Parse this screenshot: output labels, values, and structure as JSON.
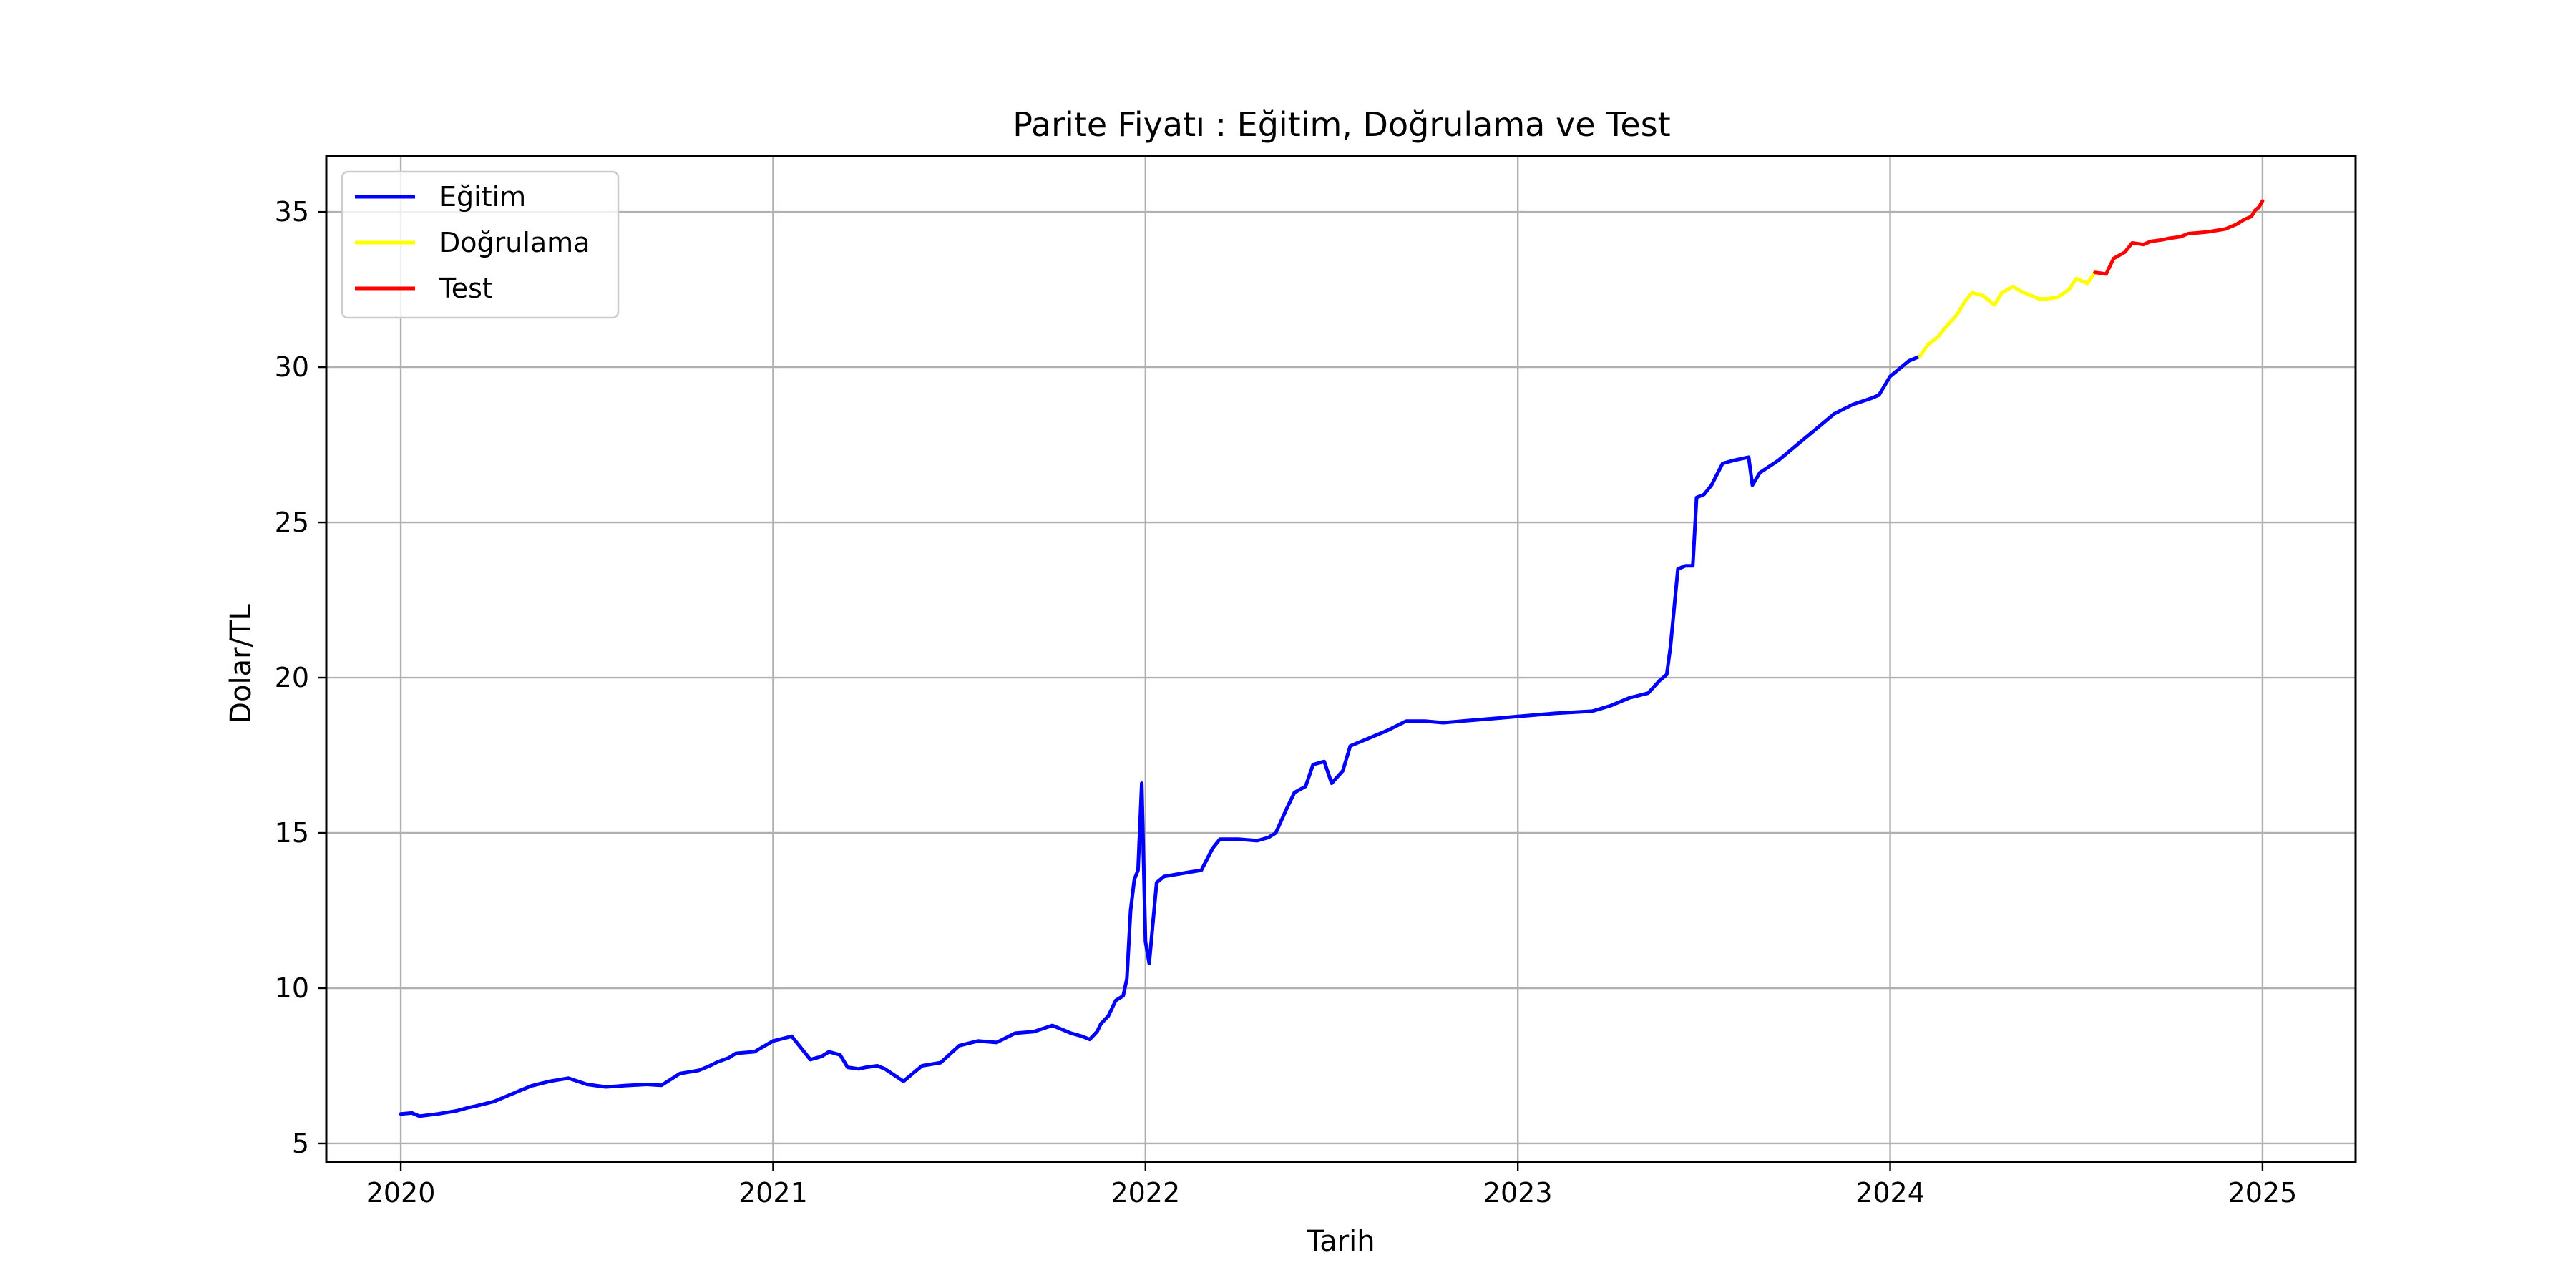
{
  "chart_data": {
    "type": "line",
    "title": "Parite Fiyatı : Eğitim, Doğrulama ve Test",
    "xlabel": "Tarih",
    "ylabel": "Dolar/TL",
    "xlim": [
      2019.8,
      2025.25
    ],
    "ylim": [
      4.4,
      36.8
    ],
    "x_ticks": [
      "2020",
      "2021",
      "2022",
      "2023",
      "2024",
      "2025"
    ],
    "y_ticks": [
      "5",
      "10",
      "15",
      "20",
      "25",
      "30",
      "35"
    ],
    "grid": true,
    "legend_position": "upper-left",
    "series": [
      {
        "name": "Eğitim",
        "color": "#0000ff",
        "x": [
          2020.0,
          2020.03,
          2020.05,
          2020.1,
          2020.15,
          2020.18,
          2020.2,
          2020.25,
          2020.3,
          2020.35,
          2020.4,
          2020.45,
          2020.5,
          2020.55,
          2020.58,
          2020.6,
          2020.63,
          2020.66,
          2020.7,
          2020.75,
          2020.8,
          2020.83,
          2020.85,
          2020.88,
          2020.9,
          2020.95,
          2021.0,
          2021.05,
          2021.1,
          2021.13,
          2021.15,
          2021.18,
          2021.2,
          2021.23,
          2021.25,
          2021.28,
          2021.3,
          2021.35,
          2021.4,
          2021.45,
          2021.5,
          2021.55,
          2021.6,
          2021.65,
          2021.7,
          2021.75,
          2021.78,
          2021.8,
          2021.83,
          2021.85,
          2021.87,
          2021.88,
          2021.9,
          2021.92,
          2021.94,
          2021.95,
          2021.96,
          2021.97,
          2021.98,
          2021.99,
          2022.0,
          2022.01,
          2022.03,
          2022.05,
          2022.1,
          2022.15,
          2022.18,
          2022.2,
          2022.25,
          2022.3,
          2022.33,
          2022.35,
          2022.38,
          2022.4,
          2022.43,
          2022.45,
          2022.48,
          2022.5,
          2022.53,
          2022.55,
          2022.58,
          2022.6,
          2022.65,
          2022.7,
          2022.75,
          2022.8,
          2022.85,
          2022.9,
          2022.95,
          2023.0,
          2023.1,
          2023.2,
          2023.25,
          2023.3,
          2023.35,
          2023.38,
          2023.4,
          2023.41,
          2023.43,
          2023.45,
          2023.47,
          2023.48,
          2023.5,
          2023.52,
          2023.55,
          2023.58,
          2023.6,
          2023.62,
          2023.63,
          2023.65,
          2023.7,
          2023.75,
          2023.8,
          2023.85,
          2023.9,
          2023.95,
          2023.97,
          2024.0,
          2024.05,
          2024.08
        ],
        "y": [
          5.95,
          5.98,
          5.88,
          5.95,
          6.05,
          6.15,
          6.2,
          6.35,
          6.6,
          6.85,
          7.0,
          7.1,
          6.9,
          6.82,
          6.84,
          6.86,
          6.88,
          6.9,
          6.87,
          7.25,
          7.35,
          7.5,
          7.62,
          7.75,
          7.9,
          7.95,
          8.3,
          8.45,
          7.7,
          7.8,
          7.95,
          7.85,
          7.45,
          7.4,
          7.45,
          7.5,
          7.4,
          7.0,
          7.5,
          7.6,
          8.15,
          8.3,
          8.25,
          8.55,
          8.6,
          8.8,
          8.65,
          8.55,
          8.45,
          8.35,
          8.6,
          8.85,
          9.1,
          9.6,
          9.75,
          10.3,
          12.5,
          13.5,
          13.8,
          16.6,
          11.5,
          10.8,
          13.4,
          13.6,
          13.7,
          13.8,
          14.5,
          14.8,
          14.8,
          14.75,
          14.85,
          15.0,
          15.8,
          16.3,
          16.5,
          17.2,
          17.3,
          16.6,
          17.0,
          17.8,
          17.95,
          18.05,
          18.3,
          18.6,
          18.6,
          18.55,
          18.6,
          18.65,
          18.7,
          18.75,
          18.85,
          18.92,
          19.1,
          19.35,
          19.5,
          19.9,
          20.1,
          21.0,
          23.5,
          23.6,
          23.6,
          25.8,
          25.9,
          26.2,
          26.9,
          27.0,
          27.05,
          27.1,
          26.2,
          26.6,
          27.0,
          27.5,
          28.0,
          28.5,
          28.8,
          29.0,
          29.1,
          29.7,
          30.2,
          30.35
        ]
      },
      {
        "name": "Doğrulama",
        "color": "#ffff00",
        "x": [
          2024.08,
          2024.1,
          2024.13,
          2024.15,
          2024.18,
          2024.2,
          2024.22,
          2024.25,
          2024.28,
          2024.3,
          2024.33,
          2024.35,
          2024.38,
          2024.4,
          2024.42,
          2024.45,
          2024.48,
          2024.5,
          2024.53,
          2024.55
        ],
        "y": [
          30.35,
          30.7,
          31.0,
          31.3,
          31.7,
          32.1,
          32.4,
          32.3,
          32.0,
          32.4,
          32.6,
          32.45,
          32.3,
          32.2,
          32.2,
          32.25,
          32.5,
          32.85,
          32.7,
          33.05
        ]
      },
      {
        "name": "Test",
        "color": "#ff0000",
        "x": [
          2024.55,
          2024.58,
          2024.6,
          2024.63,
          2024.65,
          2024.68,
          2024.7,
          2024.73,
          2024.75,
          2024.78,
          2024.8,
          2024.85,
          2024.9,
          2024.93,
          2024.95,
          2024.97,
          2024.98,
          2024.99,
          2025.0
        ],
        "y": [
          33.05,
          33.0,
          33.5,
          33.7,
          34.0,
          33.95,
          34.05,
          34.1,
          34.15,
          34.2,
          34.3,
          34.35,
          34.45,
          34.6,
          34.75,
          34.85,
          35.05,
          35.15,
          35.35
        ]
      }
    ]
  }
}
